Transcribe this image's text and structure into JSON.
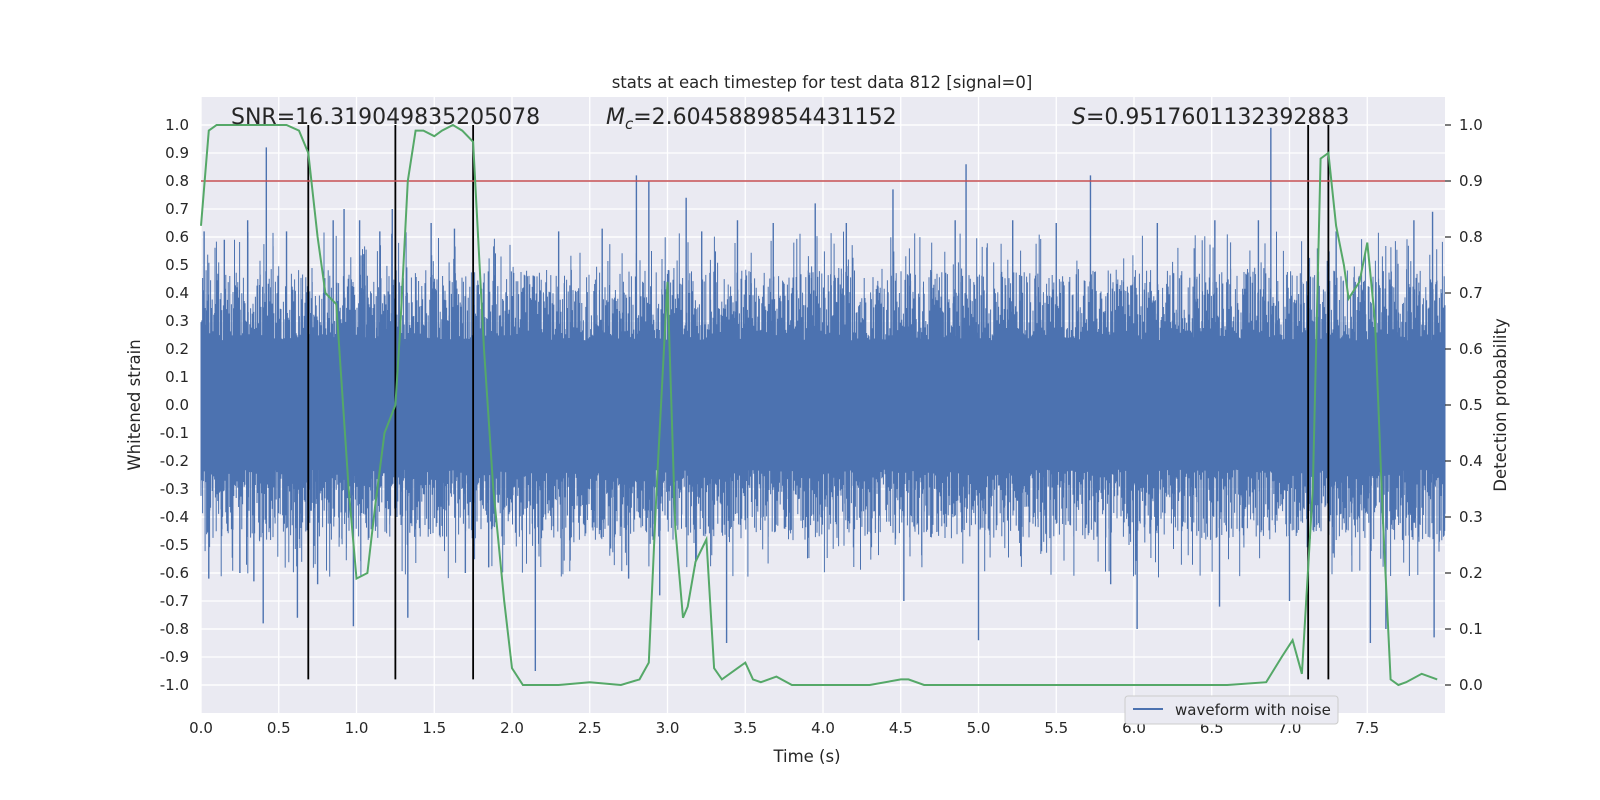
{
  "chart_data": {
    "type": "line",
    "title": "stats at each timestep for test data 812 [signal=0]",
    "xlabel": "Time (s)",
    "ylabel_left": "Whitened strain",
    "ylabel_right": "Detection probability",
    "xlim": [
      0,
      8
    ],
    "ylim_left": [
      -1.1,
      1.1
    ],
    "ylim_right": [
      -0.05,
      1.05
    ],
    "x_ticks": [
      "0.0",
      "0.5",
      "1.0",
      "1.5",
      "2.0",
      "2.5",
      "3.0",
      "3.5",
      "4.0",
      "4.5",
      "5.0",
      "5.5",
      "6.0",
      "6.5",
      "7.0",
      "7.5"
    ],
    "y_ticks_left": [
      "1.0",
      "0.9",
      "0.8",
      "0.7",
      "0.6",
      "0.5",
      "0.4",
      "0.3",
      "0.2",
      "0.1",
      "0.0",
      "-0.1",
      "-0.2",
      "-0.3",
      "-0.4",
      "-0.5",
      "-0.6",
      "-0.7",
      "-0.8",
      "-0.9",
      "-1.0"
    ],
    "y_ticks_right": [
      "1.0",
      "0.9",
      "0.8",
      "0.7",
      "0.6",
      "0.5",
      "0.4",
      "0.3",
      "0.2",
      "0.1",
      "0.0"
    ],
    "grid": true,
    "legend_position": "lower-right",
    "annotations": {
      "snr": "SNR=16.319049835205078",
      "mc_symbol": "M",
      "mc_sub": "c",
      "mc_value": "=2.6045889854431152",
      "s_symbol": "S",
      "s_value": "=0.9517601132392883"
    },
    "threshold": {
      "value": 0.9,
      "axis": "right",
      "color": "#c44e52"
    },
    "vertical_lines": [
      0.69,
      1.25,
      1.75,
      7.12,
      7.25
    ],
    "waveform": {
      "name": "waveform with noise",
      "color": "#4c72b0",
      "envelope_upper": 0.42,
      "envelope_lower": -0.42,
      "spikes": [
        [
          0.02,
          0.62
        ],
        [
          0.05,
          -0.62
        ],
        [
          0.15,
          0.59
        ],
        [
          0.25,
          -0.6
        ],
        [
          0.3,
          0.66
        ],
        [
          0.34,
          -0.63
        ],
        [
          0.42,
          0.92
        ],
        [
          0.4,
          -0.78
        ],
        [
          0.55,
          0.62
        ],
        [
          0.62,
          -0.76
        ],
        [
          0.69,
          0.72
        ],
        [
          0.75,
          -0.64
        ],
        [
          0.85,
          0.66
        ],
        [
          0.92,
          0.7
        ],
        [
          0.98,
          -0.79
        ],
        [
          1.02,
          0.66
        ],
        [
          1.15,
          0.62
        ],
        [
          1.23,
          0.7
        ],
        [
          1.33,
          -0.76
        ],
        [
          1.48,
          0.65
        ],
        [
          1.63,
          0.63
        ],
        [
          1.7,
          -0.6
        ],
        [
          1.85,
          -0.58
        ],
        [
          2.15,
          -0.95
        ],
        [
          2.3,
          0.62
        ],
        [
          2.58,
          0.63
        ],
        [
          2.75,
          -0.62
        ],
        [
          2.8,
          0.82
        ],
        [
          2.88,
          0.8
        ],
        [
          2.95,
          -0.68
        ],
        [
          3.12,
          0.74
        ],
        [
          3.22,
          0.62
        ],
        [
          3.38,
          -0.85
        ],
        [
          3.45,
          0.66
        ],
        [
          3.68,
          0.65
        ],
        [
          3.95,
          0.72
        ],
        [
          4.15,
          0.65
        ],
        [
          4.45,
          0.77
        ],
        [
          4.52,
          -0.7
        ],
        [
          4.85,
          0.66
        ],
        [
          4.92,
          0.86
        ],
        [
          5.0,
          -0.84
        ],
        [
          5.22,
          0.66
        ],
        [
          5.5,
          0.65
        ],
        [
          5.72,
          0.82
        ],
        [
          5.85,
          -0.64
        ],
        [
          6.02,
          -0.8
        ],
        [
          6.15,
          0.65
        ],
        [
          6.52,
          0.66
        ],
        [
          6.55,
          -0.72
        ],
        [
          6.8,
          0.66
        ],
        [
          6.88,
          0.99
        ],
        [
          7.0,
          -0.7
        ],
        [
          7.12,
          -0.62
        ],
        [
          7.3,
          0.62
        ],
        [
          7.52,
          -0.85
        ],
        [
          7.62,
          -0.8
        ],
        [
          7.8,
          0.66
        ],
        [
          7.92,
          0.69
        ],
        [
          7.93,
          -0.83
        ]
      ]
    },
    "probability": {
      "color": "#55a868",
      "x": [
        0.0,
        0.05,
        0.1,
        0.2,
        0.4,
        0.55,
        0.63,
        0.69,
        0.75,
        0.8,
        0.87,
        0.95,
        1.0,
        1.07,
        1.12,
        1.18,
        1.25,
        1.28,
        1.33,
        1.38,
        1.43,
        1.5,
        1.55,
        1.62,
        1.68,
        1.75,
        1.82,
        1.88,
        1.95,
        2.0,
        2.07,
        2.15,
        2.3,
        2.5,
        2.7,
        2.82,
        2.88,
        2.93,
        3.0,
        3.05,
        3.1,
        3.13,
        3.18,
        3.25,
        3.3,
        3.35,
        3.45,
        3.5,
        3.55,
        3.6,
        3.7,
        3.8,
        4.0,
        4.3,
        4.5,
        4.55,
        4.65,
        5.0,
        5.3,
        5.6,
        6.0,
        6.3,
        6.6,
        6.85,
        6.95,
        7.02,
        7.08,
        7.15,
        7.2,
        7.25,
        7.3,
        7.35,
        7.38,
        7.45,
        7.5,
        7.55,
        7.6,
        7.65,
        7.7,
        7.75,
        7.85,
        7.95
      ],
      "y": [
        0.82,
        0.99,
        1.0,
        1.0,
        1.0,
        1.0,
        0.99,
        0.95,
        0.8,
        0.7,
        0.68,
        0.35,
        0.19,
        0.2,
        0.32,
        0.45,
        0.5,
        0.63,
        0.9,
        0.99,
        0.99,
        0.98,
        0.99,
        1.0,
        0.99,
        0.97,
        0.6,
        0.35,
        0.15,
        0.03,
        0.0,
        0.0,
        0.0,
        0.005,
        0.0,
        0.01,
        0.04,
        0.35,
        0.72,
        0.28,
        0.12,
        0.14,
        0.22,
        0.26,
        0.03,
        0.01,
        0.03,
        0.04,
        0.01,
        0.005,
        0.015,
        0.0,
        0.0,
        0.0,
        0.01,
        0.01,
        0.0,
        0.0,
        0.0,
        0.0,
        0.0,
        0.0,
        0.0,
        0.005,
        0.05,
        0.08,
        0.02,
        0.35,
        0.94,
        0.95,
        0.82,
        0.75,
        0.69,
        0.72,
        0.79,
        0.65,
        0.3,
        0.01,
        0.0,
        0.005,
        0.02,
        0.01
      ]
    }
  }
}
